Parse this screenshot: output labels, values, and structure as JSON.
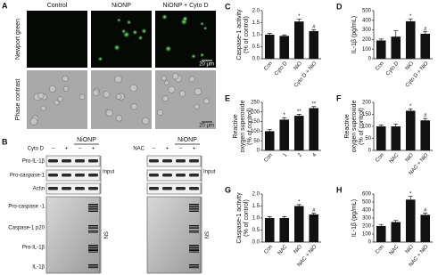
{
  "panel_a": {
    "label": "A",
    "columns": [
      "Control",
      "NiONP",
      "NiONP + Cyto D"
    ],
    "rows": [
      "Newport green",
      "Phase contrast"
    ],
    "scale_bar": "20 μm"
  },
  "panel_b": {
    "label": "B",
    "groups": [
      {
        "treatment": "Cyto D",
        "particle": "NiONP",
        "signs": [
          "–",
          "+",
          "–",
          "+"
        ]
      },
      {
        "treatment": "NAC",
        "particle": "NiONP",
        "signs": [
          "–",
          "+",
          "–",
          "+"
        ]
      }
    ],
    "rows": [
      "Pro-IL-1β",
      "Pro-caspase-1",
      "Actin",
      "Pro-caspase -1",
      "Caspase-1 p20",
      "Pro-IL-1β",
      "IL-1β"
    ],
    "sections": [
      "Input",
      "SN"
    ]
  },
  "chart_data": [
    {
      "type": "bar",
      "label": "C",
      "y_label": [
        "Caspase-1 activity",
        "(% of control)"
      ],
      "categories": [
        "Con",
        "Cyto D",
        "NiO",
        "Cyto D + NiO"
      ],
      "values": [
        1.0,
        0.95,
        1.55,
        1.15
      ],
      "errors": [
        0.05,
        0.04,
        0.1,
        0.05
      ],
      "annotations": [
        null,
        null,
        "*",
        "#"
      ],
      "color": "#111111",
      "ylim": [
        0,
        2
      ],
      "yticks": [
        {
          "value": 0,
          "label": "0.0"
        },
        0.5,
        {
          "value": 1,
          "label": "1.0"
        },
        1.5,
        {
          "value": 2,
          "label": "2.0"
        }
      ]
    },
    {
      "type": "bar",
      "label": "D",
      "y_label": [
        "IL-1β (pg/mL)"
      ],
      "categories": [
        "Con",
        "Cyto D",
        "NiO",
        "Cyto D + NiO"
      ],
      "values": [
        190,
        230,
        390,
        260
      ],
      "errors": [
        15,
        60,
        25,
        20
      ],
      "annotations": [
        null,
        null,
        "*",
        "#"
      ],
      "color": "#111111",
      "ylim": [
        0,
        500
      ],
      "yticks": [
        0,
        100,
        200,
        300,
        400,
        500
      ]
    },
    {
      "type": "bar",
      "label": "E",
      "y_label": [
        "Reactive",
        "oxygen superoxide",
        "(% of control)"
      ],
      "categories": [
        "Con",
        "1",
        "2",
        "4"
      ],
      "values": [
        100,
        160,
        180,
        220
      ],
      "errors": [
        8,
        10,
        8,
        8
      ],
      "annotations": [
        null,
        "*",
        "**",
        "**"
      ],
      "color": "#111111",
      "ylim": [
        0,
        250
      ],
      "yticks": [
        0,
        50,
        100,
        150,
        200,
        250
      ]
    },
    {
      "type": "bar",
      "label": "F",
      "y_label": [
        "Reactive",
        "oxygen superoxide",
        "(% of control)"
      ],
      "categories": [
        "Con",
        "NAC",
        "NiO",
        "NAC + NiO"
      ],
      "values": [
        100,
        100,
        165,
        125
      ],
      "errors": [
        5,
        10,
        8,
        8
      ],
      "annotations": [
        null,
        null,
        "*",
        "#"
      ],
      "color": "#111111",
      "ylim": [
        0,
        200
      ],
      "yticks": [
        0,
        50,
        100,
        150,
        200
      ]
    },
    {
      "type": "bar",
      "label": "G",
      "y_label": [
        "Caspase-1 activity",
        "(% of control)"
      ],
      "categories": [
        "Con",
        "NAC",
        "NiO",
        "NAC + NiO"
      ],
      "values": [
        1.0,
        1.0,
        1.5,
        1.15
      ],
      "errors": [
        0.06,
        0.06,
        0.06,
        0.05
      ],
      "annotations": [
        null,
        null,
        "*",
        "#"
      ],
      "color": "#111111",
      "ylim": [
        0,
        2
      ],
      "yticks": [
        {
          "value": 0,
          "label": "0.0"
        },
        0.5,
        {
          "value": 1,
          "label": "1.0"
        },
        1.5,
        {
          "value": 2,
          "label": "2.0"
        }
      ]
    },
    {
      "type": "bar",
      "label": "H",
      "y_label": [
        "IL-1β (pg/mL)"
      ],
      "categories": [
        "Con",
        "NAC",
        "NiO",
        "NAC + NiO"
      ],
      "values": [
        200,
        250,
        530,
        340
      ],
      "errors": [
        20,
        20,
        40,
        20
      ],
      "annotations": [
        null,
        null,
        "*",
        "#"
      ],
      "color": "#111111",
      "ylim": [
        0,
        600
      ],
      "yticks": [
        0,
        100,
        200,
        300,
        400,
        500,
        600
      ]
    }
  ]
}
